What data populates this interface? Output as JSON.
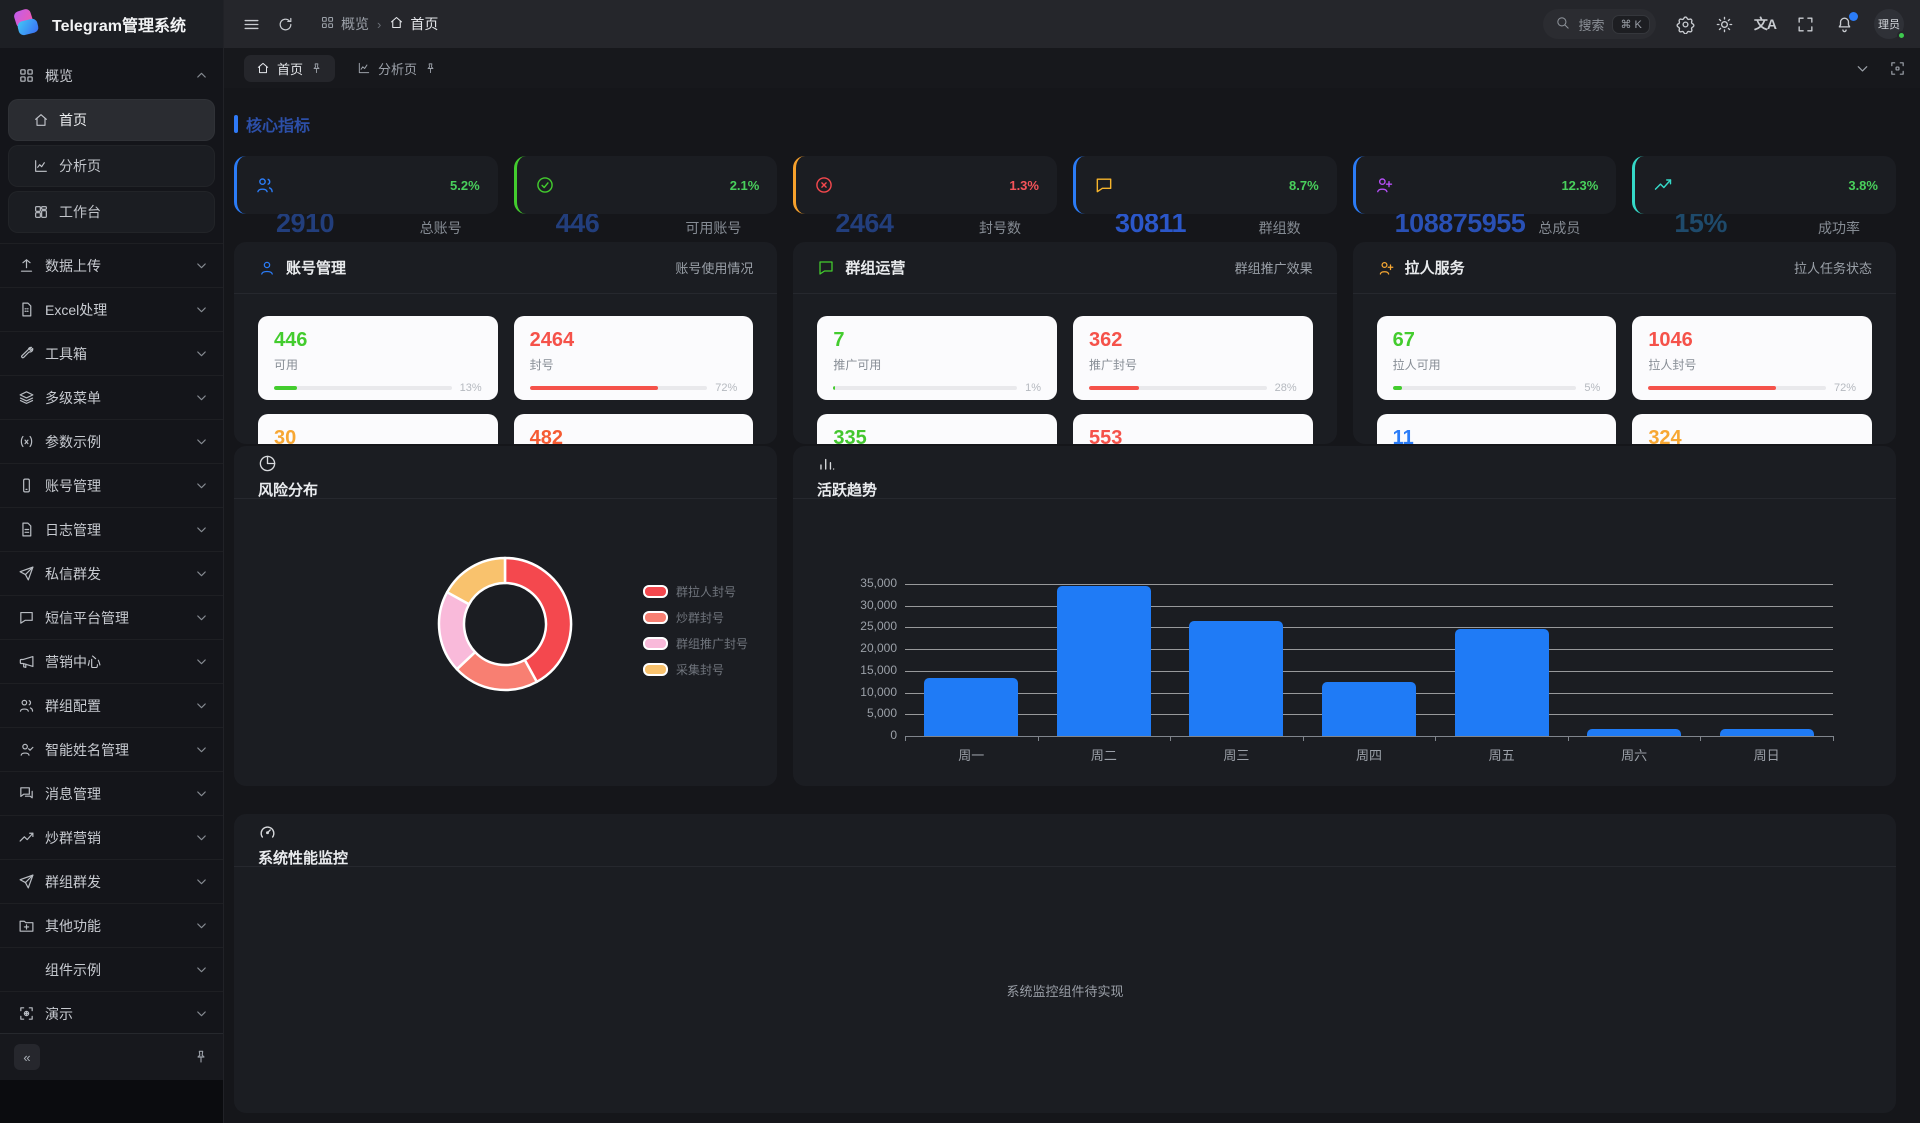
{
  "app": {
    "title": "Telegram管理系统"
  },
  "sidebar": {
    "items": [
      {
        "icon": "grid",
        "label": "概览",
        "chevron": "up",
        "children": [
          {
            "icon": "home",
            "label": "首页",
            "active": true
          },
          {
            "icon": "chart",
            "label": "分析页",
            "active": false
          },
          {
            "icon": "board",
            "label": "工作台",
            "active": false
          }
        ]
      },
      {
        "icon": "upload",
        "label": "数据上传",
        "chevron": "down"
      },
      {
        "icon": "file-excel",
        "label": "Excel处理",
        "chevron": "down"
      },
      {
        "icon": "wrench",
        "label": "工具箱",
        "chevron": "down"
      },
      {
        "icon": "layers",
        "label": "多级菜单",
        "chevron": "down"
      },
      {
        "icon": "params",
        "label": "参数示例",
        "chevron": "down"
      },
      {
        "icon": "device",
        "label": "账号管理",
        "chevron": "down"
      },
      {
        "icon": "file-text",
        "label": "日志管理",
        "chevron": "down"
      },
      {
        "icon": "send",
        "label": "私信群发",
        "chevron": "down"
      },
      {
        "icon": "message",
        "label": "短信平台管理",
        "chevron": "down"
      },
      {
        "icon": "megaphone",
        "label": "营销中心",
        "chevron": "down"
      },
      {
        "icon": "users",
        "label": "群组配置",
        "chevron": "down"
      },
      {
        "icon": "user-check",
        "label": "智能姓名管理",
        "chevron": "down"
      },
      {
        "icon": "messages",
        "label": "消息管理",
        "chevron": "down"
      },
      {
        "icon": "trend",
        "label": "炒群营销",
        "chevron": "down"
      },
      {
        "icon": "send",
        "label": "群组群发",
        "chevron": "down"
      },
      {
        "icon": "folder-plus",
        "label": "其他功能",
        "chevron": "down"
      },
      {
        "icon": null,
        "label": "组件示例",
        "chevron": "down"
      },
      {
        "icon": "scan",
        "label": "演示",
        "chevron": "down"
      }
    ],
    "collapse_label": "«",
    "pin_icon": "pin"
  },
  "header": {
    "menu_icon": "hamburger",
    "refresh_icon": "refresh",
    "breadcrumb": [
      {
        "icon": "grid",
        "label": "概览"
      },
      {
        "icon": "home",
        "label": "首页"
      }
    ],
    "breadcrumb_separator": "›",
    "search": {
      "icon": "search",
      "placeholder": "搜索",
      "shortcut": "⌘ K"
    },
    "tools": [
      {
        "icon": "gear",
        "name": "settings-button"
      },
      {
        "icon": "sun",
        "name": "theme-toggle-button"
      },
      {
        "icon": "translate",
        "name": "language-button"
      },
      {
        "icon": "fullscreen",
        "name": "fullscreen-button"
      },
      {
        "icon": "bell",
        "name": "notifications-button",
        "dot_color": "#2b7cf7"
      }
    ],
    "user": {
      "name": "理员",
      "status_color": "#3ec94e"
    }
  },
  "tab_bar": {
    "tabs": [
      {
        "icon": "home",
        "label": "首页",
        "pin": true,
        "active": true
      },
      {
        "icon": "chart",
        "label": "分析页",
        "pin": true,
        "active": false
      }
    ],
    "right_icons": [
      {
        "icon": "chevronDown",
        "name": "tab-list-button"
      },
      {
        "icon": "framedot",
        "name": "content-fullscreen-button"
      }
    ]
  },
  "page": {
    "section_title": "核心指标",
    "kpis": [
      {
        "icon": "users",
        "icon_color": "#2b7cf7",
        "border": "#2b7cf7",
        "percent": "5.2%",
        "percent_color": "#49d05c",
        "value": "2910",
        "value_color": "#223e7c",
        "label": "总账号"
      },
      {
        "icon": "check-circle",
        "icon_color": "#43cc2e",
        "border": "#43cc2e",
        "percent": "2.1%",
        "percent_color": "#49d05c",
        "value": "446",
        "value_color": "#223e7c",
        "label": "可用账号"
      },
      {
        "icon": "x-circle",
        "icon_color": "#f5484d",
        "border": "#f7a12c",
        "percent": "1.3%",
        "percent_color": "#f5545a",
        "value": "2464",
        "value_color": "#223e7c",
        "label": "封号数"
      },
      {
        "icon": "message",
        "icon_color": "#f7b52c",
        "border": "#2b7cf7",
        "percent": "8.7%",
        "percent_color": "#49d05c",
        "value": "30811",
        "value_color": "#2b57c9",
        "label": "群组数"
      },
      {
        "icon": "user-plus",
        "icon_color": "#b44ef5",
        "border": "#2b7cf7",
        "percent": "12.3%",
        "percent_color": "#49d05c",
        "value": "108875955",
        "value_color": "#2950b4",
        "label": "总成员"
      },
      {
        "icon": "trend",
        "icon_color": "#35d9c8",
        "border": "#35d9c8",
        "percent": "3.8%",
        "percent_color": "#49d05c",
        "value": "15%",
        "value_color": "#1e4a6b",
        "label": "成功率"
      }
    ],
    "panels": [
      {
        "icon": "user",
        "icon_color": "#2b7cf7",
        "title": "账号管理",
        "subtitle": "账号使用情况",
        "stats": [
          {
            "value": "446",
            "color": "#43cc2e",
            "label": "可用",
            "progress": 13,
            "bar_color": "#43cc2e",
            "percent_label": "13%"
          },
          {
            "value": "2464",
            "color": "#f5524a",
            "label": "封号",
            "progress": 72,
            "bar_color": "#f5524a",
            "percent_label": "72%"
          },
          {
            "value": "30",
            "color": "#f7a733"
          },
          {
            "value": "482",
            "color": "#f55b33"
          }
        ]
      },
      {
        "icon": "message-square",
        "icon_color": "#43cc2e",
        "title": "群组运营",
        "subtitle": "群组推广效果",
        "stats": [
          {
            "value": "7",
            "color": "#43cc2e",
            "label": "推广可用",
            "progress": 1,
            "bar_color": "#43cc2e",
            "percent_label": "1%"
          },
          {
            "value": "362",
            "color": "#f5524a",
            "label": "推广封号",
            "progress": 28,
            "bar_color": "#f5524a",
            "percent_label": "28%"
          },
          {
            "value": "335",
            "color": "#43c62e"
          },
          {
            "value": "553",
            "color": "#f5524a"
          }
        ]
      },
      {
        "icon": "user-plus",
        "icon_color": "#f7a733",
        "title": "拉人服务",
        "subtitle": "拉人任务状态",
        "stats": [
          {
            "value": "67",
            "color": "#43cc2e",
            "label": "拉人可用",
            "progress": 5,
            "bar_color": "#43cc2e",
            "percent_label": "5%"
          },
          {
            "value": "1046",
            "color": "#f5524a",
            "label": "拉人封号",
            "progress": 72,
            "bar_color": "#f5524a",
            "percent_label": "72%"
          },
          {
            "value": "11",
            "color": "#2b7cf7"
          },
          {
            "value": "324",
            "color": "#f7a733"
          }
        ]
      }
    ],
    "risk_panel": {
      "icon": "pie",
      "title": "风险分布"
    },
    "trend_panel": {
      "icon": "bars",
      "title": "活跃趋势"
    },
    "monitor_panel": {
      "icon": "gauge",
      "title": "系统性能监控",
      "placeholder": "系统监控组件待实现"
    }
  },
  "chart_data": [
    {
      "type": "pie",
      "title": "风险分布",
      "donut": true,
      "legend_position": "right",
      "slices": [
        {
          "label": "群拉人封号",
          "percent": 42,
          "color": "#f4484e"
        },
        {
          "label": "炒群封号",
          "percent": 21,
          "color": "#f87f72"
        },
        {
          "label": "群组推广封号",
          "percent": 20,
          "color": "#f9bada"
        },
        {
          "label": "采集封号",
          "percent": 17,
          "color": "#f9c26d"
        }
      ]
    },
    {
      "type": "bar",
      "title": "活跃趋势",
      "categories": [
        "周一",
        "周二",
        "周三",
        "周四",
        "周五",
        "周六",
        "周日"
      ],
      "values": [
        13300,
        34500,
        26400,
        12400,
        24700,
        1600,
        1700
      ],
      "bar_color": "#1f7bf6",
      "ylim": [
        0,
        35000
      ],
      "ytick_step": 5000,
      "grid": true,
      "xlabel": "",
      "ylabel": ""
    }
  ]
}
